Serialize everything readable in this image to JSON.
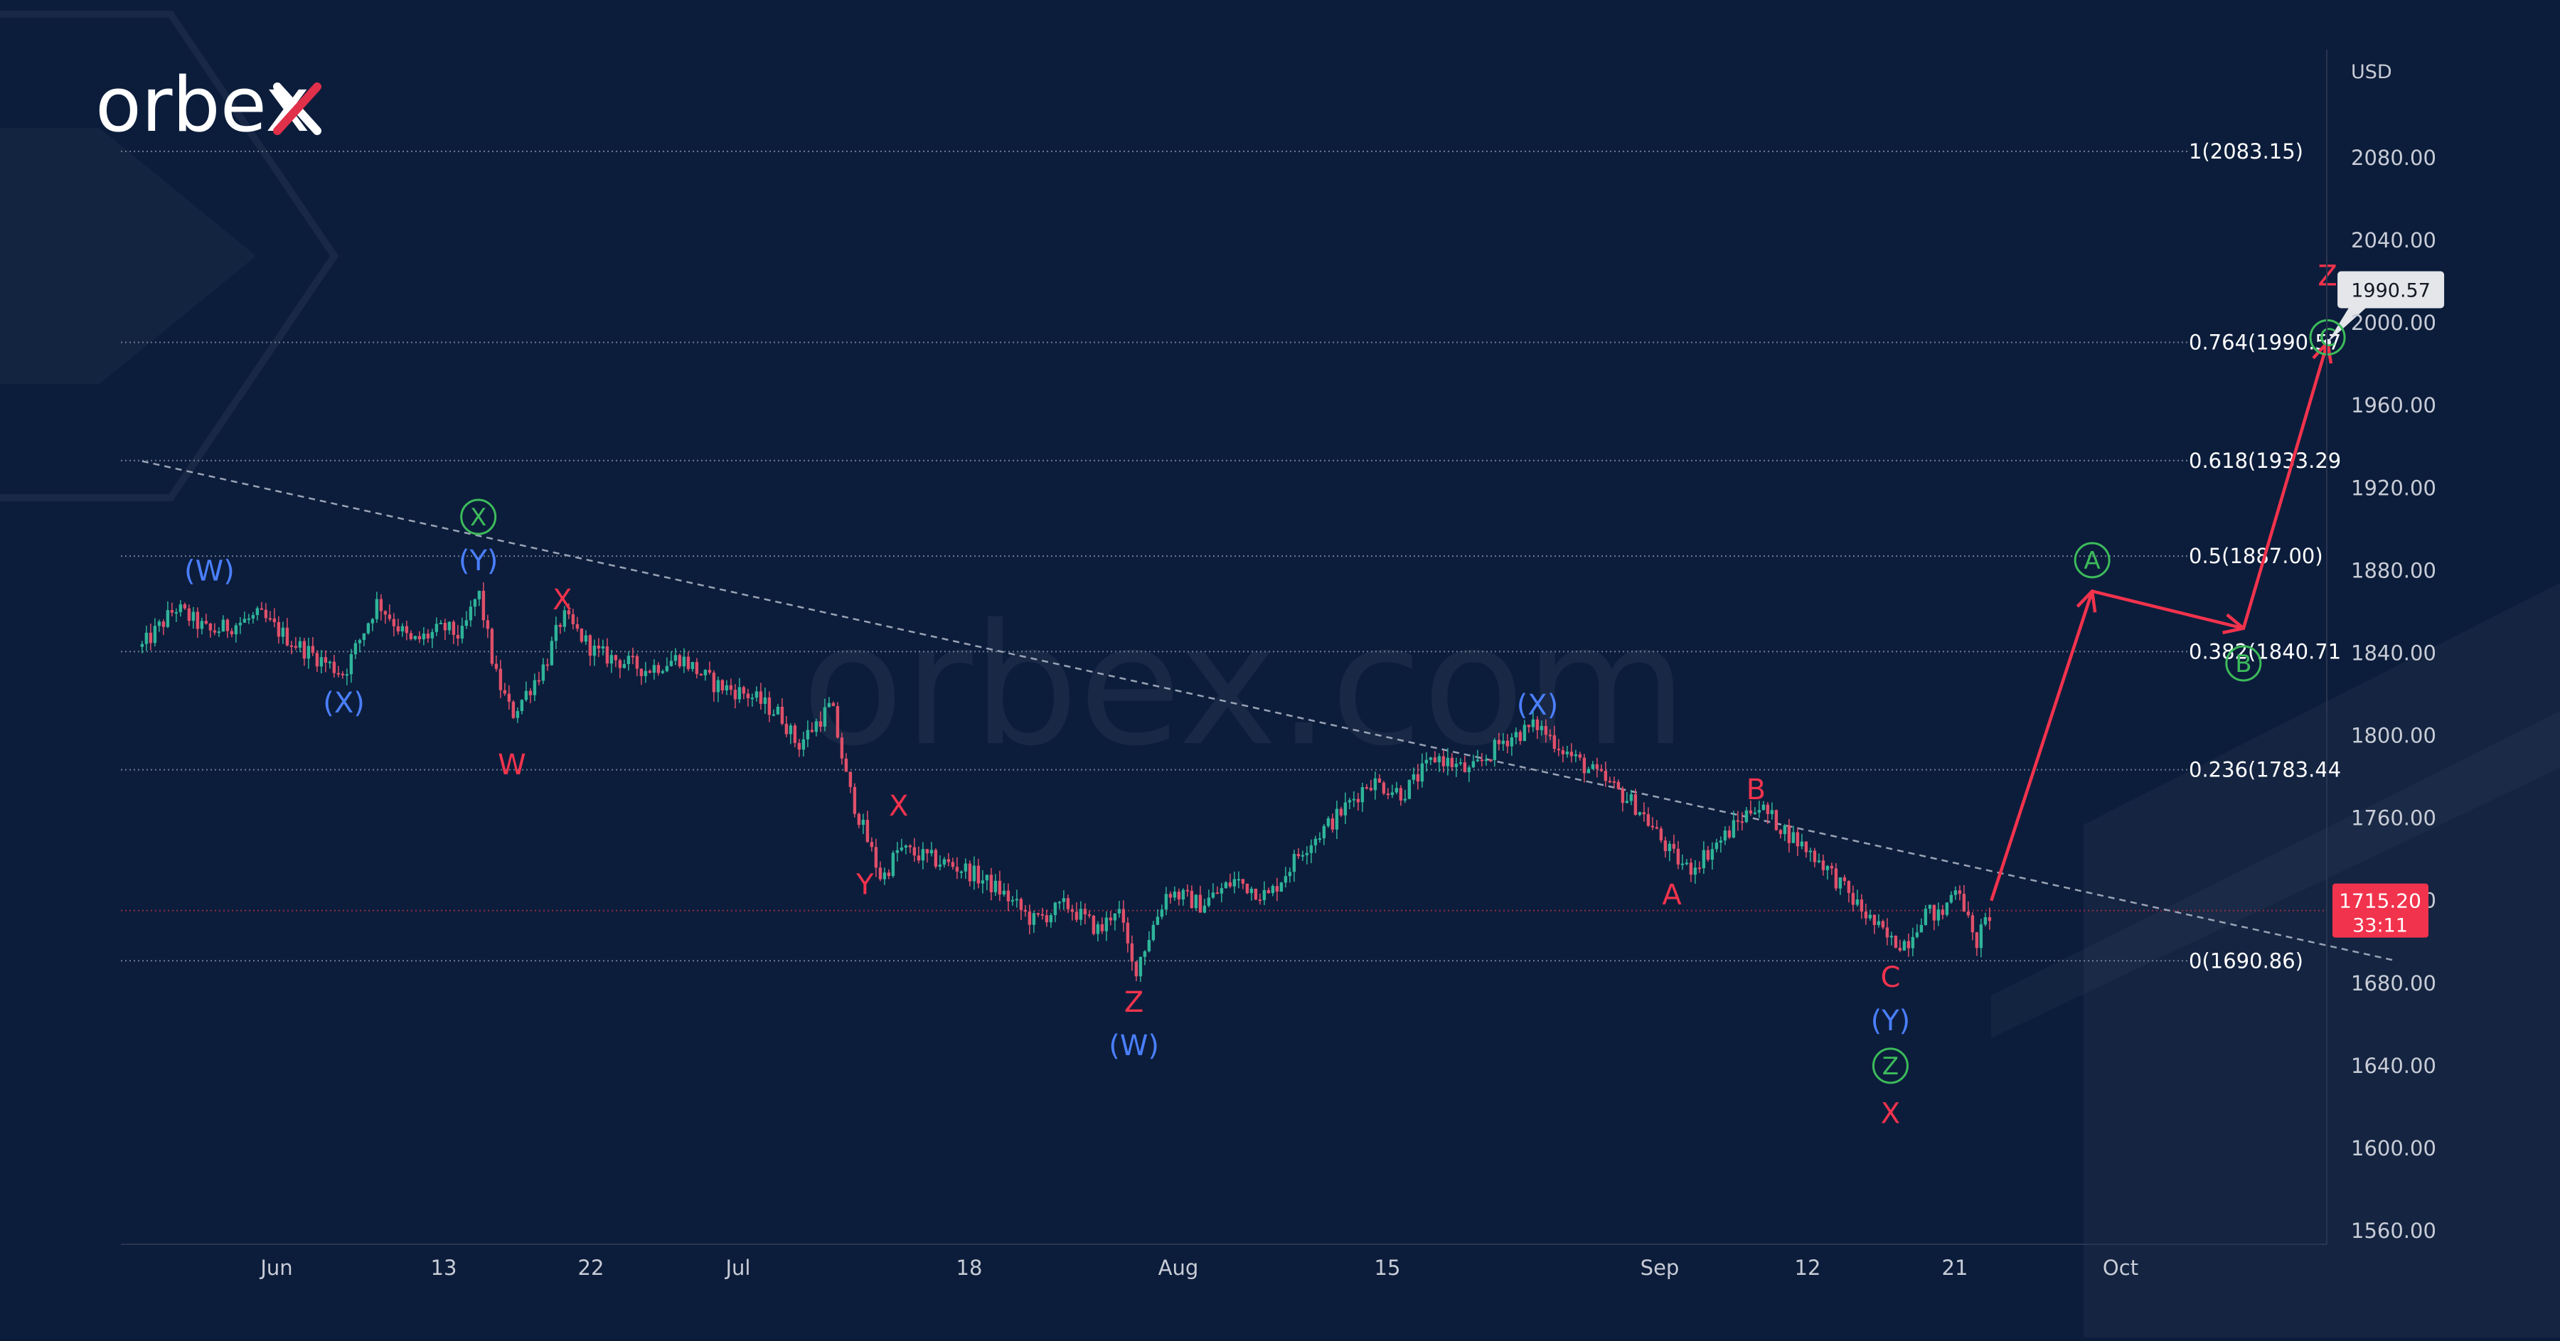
{
  "brand": {
    "logo_text": "orbex",
    "watermark": "orbex.com"
  },
  "colors": {
    "background": "#0c1d3b",
    "candle_up": "#2fb49a",
    "candle_down": "#e0506a",
    "wave_blue": "#4a7fff",
    "wave_red": "#f2334d",
    "wave_green": "#3dbb5b",
    "projection_arrow": "#f2334d",
    "fib_line": "#8a94a6",
    "trend_line": "#9aa3b5",
    "axis_text": "#c8ccd6",
    "price_tag": "#f2334d"
  },
  "chart_data": {
    "type": "candlestick",
    "title": "",
    "currency_label": "USD",
    "y_axis_ticks": [
      "2080.00",
      "2040.00",
      "2000.00",
      "1960.00",
      "1920.00",
      "1880.00",
      "1840.00",
      "1800.00",
      "1760.00",
      "1720.00",
      "1680.00",
      "1640.00",
      "1600.00",
      "1560.00"
    ],
    "y_range": [
      1553,
      2140
    ],
    "x_axis_labels": [
      "Jun",
      "13",
      "22",
      "Jul",
      "18",
      "Aug",
      "15",
      "Sep",
      "12",
      "21",
      "Oct"
    ],
    "current_price": {
      "value": "1715.20",
      "countdown": "33:11",
      "price": 1715.2
    },
    "fib_levels": [
      {
        "label": "1(2083.15)",
        "price": 2083.15
      },
      {
        "label": "0.764(1990.57",
        "price": 1990.57
      },
      {
        "label": "0.618(1933.29",
        "price": 1933.29
      },
      {
        "label": "0.5(1887.00)",
        "price": 1887.0
      },
      {
        "label": "0.382(1840.71",
        "price": 1840.71
      },
      {
        "label": "0.236(1783.44",
        "price": 1783.44
      },
      {
        "label": "0(1690.86)",
        "price": 1690.86
      }
    ],
    "target_callout": {
      "text": "1990.57",
      "price": 1990.57
    },
    "price_path": [
      [
        "May 24",
        1843
      ],
      [
        "May 26",
        1862
      ],
      [
        "May 28",
        1850
      ],
      [
        "May 31",
        1858
      ],
      [
        "Jun 2",
        1845
      ],
      [
        "Jun 5",
        1830
      ],
      [
        "Jun 7",
        1865
      ],
      [
        "Jun 9",
        1845
      ],
      [
        "Jun 11",
        1852
      ],
      [
        "Jun 12",
        1848
      ],
      [
        "Jun 13",
        1870
      ],
      [
        "Jun 14",
        1830
      ],
      [
        "Jun 15",
        1810
      ],
      [
        "Jun 17",
        1835
      ],
      [
        "Jun 18",
        1858
      ],
      [
        "Jun 20",
        1840
      ],
      [
        "Jun 23",
        1832
      ],
      [
        "Jun 25",
        1838
      ],
      [
        "Jun 27",
        1825
      ],
      [
        "Jun 29",
        1820
      ],
      [
        "Jul 1",
        1810
      ],
      [
        "Jul 2",
        1795
      ],
      [
        "Jul 3",
        1805
      ],
      [
        "Jul 4",
        1815
      ],
      [
        "Jul 5",
        1775
      ],
      [
        "Jul 7",
        1730
      ],
      [
        "Jul 8",
        1745
      ],
      [
        "Jul 10",
        1740
      ],
      [
        "Jul 12",
        1735
      ],
      [
        "Jul 14",
        1725
      ],
      [
        "Jul 16",
        1710
      ],
      [
        "Jul 18",
        1718
      ],
      [
        "Jul 20",
        1705
      ],
      [
        "Jul 21",
        1718
      ],
      [
        "Jul 22",
        1685
      ],
      [
        "Jul 24",
        1725
      ],
      [
        "Jul 26",
        1718
      ],
      [
        "Jul 28",
        1730
      ],
      [
        "Jul 30",
        1722
      ],
      [
        "Aug 1",
        1745
      ],
      [
        "Aug 3",
        1760
      ],
      [
        "Aug 5",
        1778
      ],
      [
        "Aug 7",
        1772
      ],
      [
        "Aug 9",
        1790
      ],
      [
        "Aug 11",
        1782
      ],
      [
        "Aug 13",
        1798
      ],
      [
        "Aug 15",
        1805
      ],
      [
        "Aug 17",
        1790
      ],
      [
        "Aug 19",
        1778
      ],
      [
        "Aug 21",
        1765
      ],
      [
        "Aug 23",
        1742
      ],
      [
        "Aug 24",
        1735
      ],
      [
        "Aug 26",
        1750
      ],
      [
        "Aug 28",
        1767
      ],
      [
        "Aug 30",
        1752
      ],
      [
        "Sep 1",
        1738
      ],
      [
        "Sep 3",
        1718
      ],
      [
        "Sep 5",
        1700
      ],
      [
        "Sep 6",
        1700
      ],
      [
        "Sep 7",
        1715
      ],
      [
        "Sep 8",
        1712
      ],
      [
        "Sep 9",
        1730
      ],
      [
        "Sep 10",
        1698
      ],
      [
        "Sep 11",
        1715
      ]
    ],
    "trendline": [
      [
        "May 24",
        1933
      ],
      [
        "Oct 5",
        1691
      ]
    ],
    "projection": [
      [
        "Sep 11",
        1720
      ],
      [
        "Sep 17",
        1870
      ],
      [
        "Sep 26",
        1852
      ],
      [
        "Oct 1",
        1990.57
      ]
    ],
    "wave_labels": [
      {
        "text": "(W)",
        "color": "blue",
        "date": "May 28",
        "price": 1880
      },
      {
        "text": "(X)",
        "color": "blue",
        "date": "Jun 5",
        "price": 1816
      },
      {
        "text": "X",
        "color": "green",
        "circle": true,
        "date": "Jun 13",
        "price": 1906
      },
      {
        "text": "(Y)",
        "color": "blue",
        "date": "Jun 13",
        "price": 1885
      },
      {
        "text": "X",
        "color": "red",
        "date": "Jun 18",
        "price": 1866
      },
      {
        "text": "W",
        "color": "red",
        "date": "Jun 15",
        "price": 1786
      },
      {
        "text": "X",
        "color": "red",
        "date": "Jul 8",
        "price": 1766
      },
      {
        "text": "Y",
        "color": "red",
        "date": "Jul 6",
        "price": 1728
      },
      {
        "text": "Z",
        "color": "red",
        "date": "Jul 22",
        "price": 1671
      },
      {
        "text": "(W)",
        "color": "blue",
        "date": "Jul 22",
        "price": 1650
      },
      {
        "text": "(X)",
        "color": "blue",
        "date": "Aug 15",
        "price": 1815
      },
      {
        "text": "A",
        "color": "red",
        "date": "Aug 23",
        "price": 1723
      },
      {
        "text": "B",
        "color": "red",
        "date": "Aug 28",
        "price": 1774
      },
      {
        "text": "C",
        "color": "red",
        "date": "Sep 5",
        "price": 1683
      },
      {
        "text": "(Y)",
        "color": "blue",
        "date": "Sep 5",
        "price": 1662
      },
      {
        "text": "Z",
        "color": "green",
        "circle": true,
        "date": "Sep 5",
        "price": 1640
      },
      {
        "text": "X",
        "color": "red",
        "date": "Sep 5",
        "price": 1617
      },
      {
        "text": "A",
        "color": "green",
        "circle": true,
        "date": "Sep 17",
        "price": 1885
      },
      {
        "text": "B",
        "color": "green",
        "circle": true,
        "date": "Sep 26",
        "price": 1835
      },
      {
        "text": "C",
        "color": "green",
        "circle": true,
        "date": "Oct 1",
        "price": 1993
      },
      {
        "text": "Z",
        "color": "red",
        "date": "Oct 1",
        "price": 2023
      }
    ]
  }
}
